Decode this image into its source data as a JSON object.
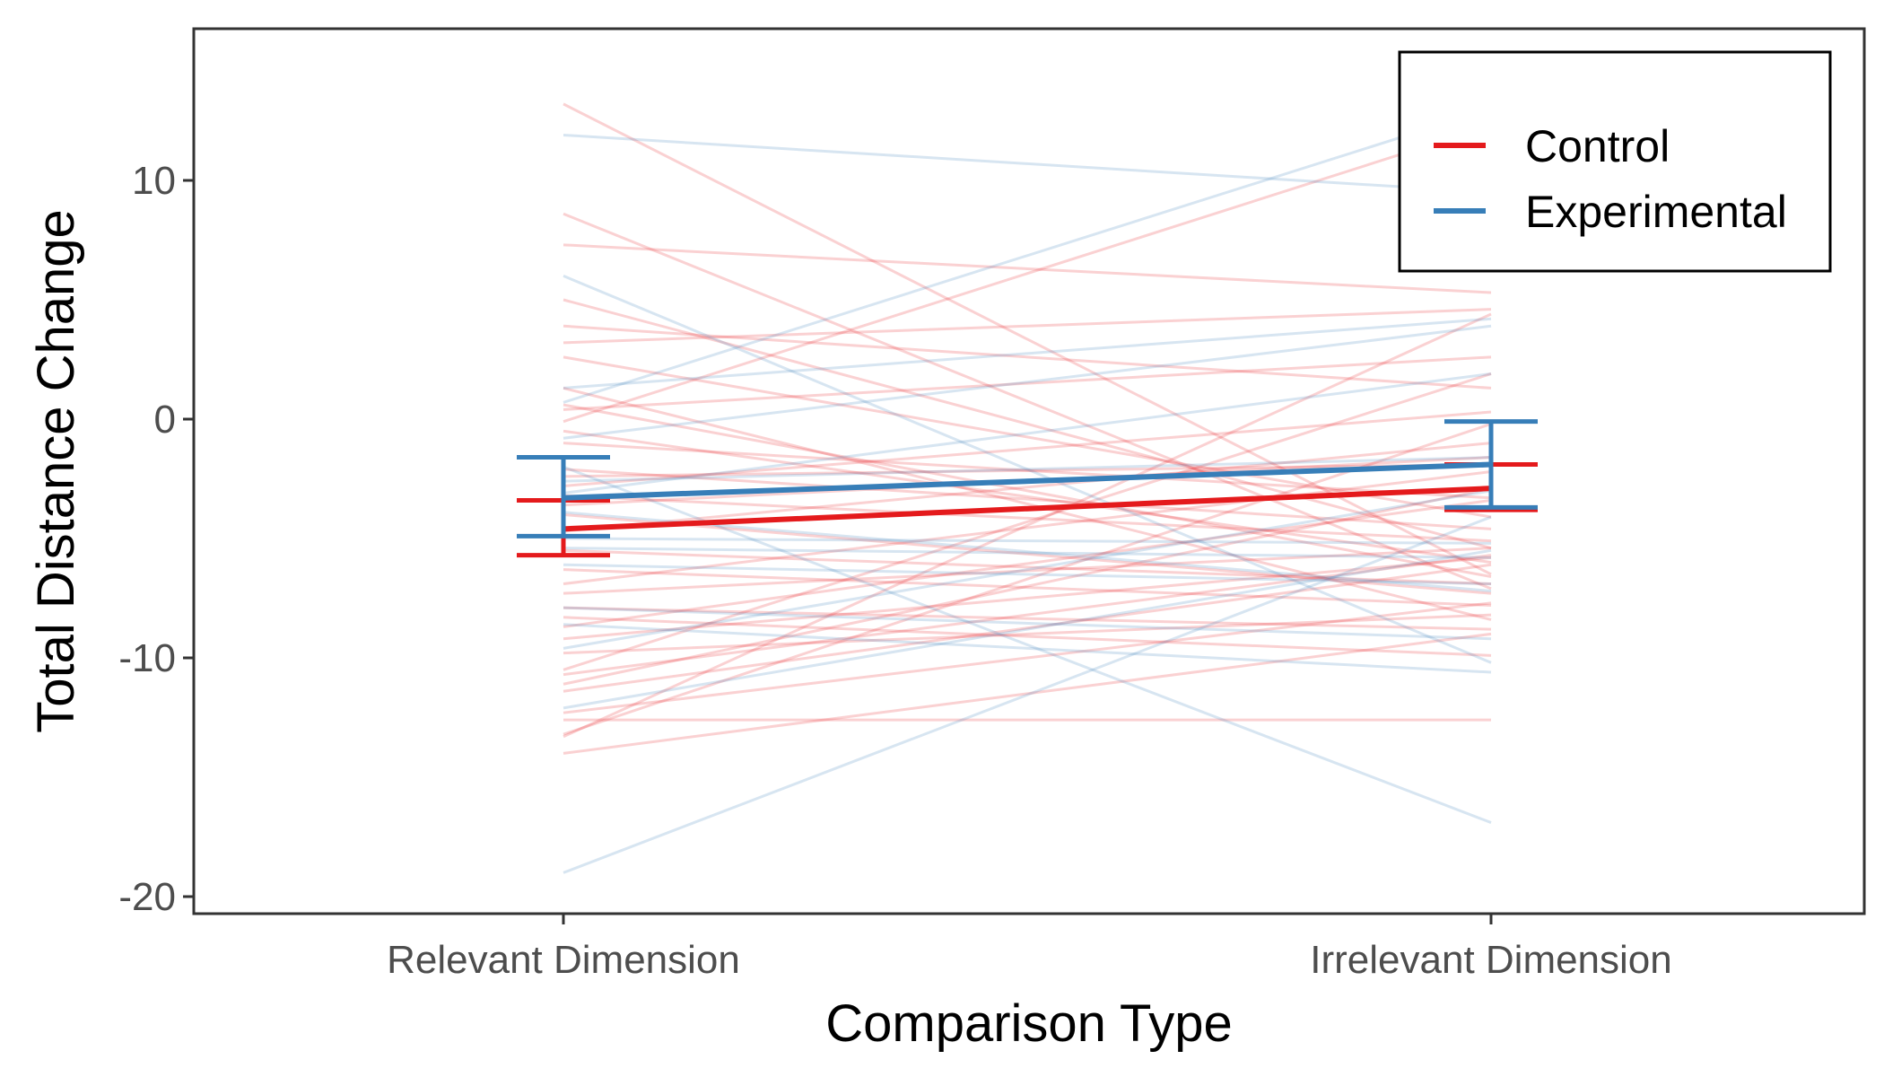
{
  "chart_data": {
    "type": "line",
    "xlabel": "Comparison Type",
    "ylabel": "Total Distance Change",
    "categories": [
      "Relevant Dimension",
      "Irrelevant Dimension"
    ],
    "ylim": [
      -20.5,
      16.5
    ],
    "yticks": [
      10,
      0,
      -10,
      -20
    ],
    "grid": false,
    "legend": {
      "position": "top-right",
      "entries": [
        {
          "name": "Control",
          "color": "#e41a1c"
        },
        {
          "name": "Experimental",
          "color": "#377eb8"
        }
      ]
    },
    "series": [
      {
        "name": "Control",
        "color": "#e41a1c",
        "means": [
          -4.6,
          -2.9
        ],
        "error_bars": [
          [
            -5.7,
            -3.4
          ],
          [
            -3.8,
            -1.9
          ]
        ]
      },
      {
        "name": "Experimental",
        "color": "#377eb8",
        "means": [
          -3.3,
          -1.9
        ],
        "error_bars": [
          [
            -4.9,
            -1.6
          ],
          [
            -3.7,
            -0.1
          ]
        ]
      }
    ],
    "individual_lines": {
      "Control": [
        [
          13.2,
          -6.5
        ],
        [
          8.6,
          -7.1
        ],
        [
          7.3,
          5.3
        ],
        [
          3.9,
          1.3
        ],
        [
          3.2,
          4.6
        ],
        [
          2.6,
          -4.1
        ],
        [
          1.3,
          -8.4
        ],
        [
          0.6,
          -6.6
        ],
        [
          0.4,
          2.6
        ],
        [
          -0.1,
          12.3
        ],
        [
          -1.0,
          -3.3
        ],
        [
          -2.1,
          -4.6
        ],
        [
          -2.8,
          0.3
        ],
        [
          -3.2,
          -5.1
        ],
        [
          -3.6,
          -1.6
        ],
        [
          -4.0,
          -7.3
        ],
        [
          -4.7,
          -1.0
        ],
        [
          -5.5,
          -6.9
        ],
        [
          -6.3,
          -7.8
        ],
        [
          -6.9,
          -2.2
        ],
        [
          -7.3,
          -5.4
        ],
        [
          -7.9,
          -8.8
        ],
        [
          -8.7,
          -3.4
        ],
        [
          -9.2,
          -5.8
        ],
        [
          -9.8,
          -8.2
        ],
        [
          -10.5,
          1.9
        ],
        [
          -10.7,
          -5.7
        ],
        [
          -11.1,
          -2.9
        ],
        [
          -11.4,
          -6.1
        ],
        [
          -12.6,
          -12.6
        ],
        [
          -13.2,
          -0.2
        ],
        [
          -13.3,
          4.4
        ],
        [
          -14.0,
          -9.0
        ],
        [
          -12.3,
          -7.7
        ],
        [
          -8.3,
          -9.9
        ],
        [
          -0.5,
          -6.0
        ],
        [
          5.0,
          -5.4
        ],
        [
          -2.4,
          -1.9
        ]
      ],
      "Experimental": [
        [
          11.9,
          9.5
        ],
        [
          6.0,
          -10.2
        ],
        [
          1.3,
          4.2
        ],
        [
          0.7,
          13.0
        ],
        [
          -0.8,
          3.9
        ],
        [
          -2.6,
          -1.6
        ],
        [
          -3.9,
          -7.2
        ],
        [
          -5.4,
          -5.8
        ],
        [
          -6.1,
          -6.9
        ],
        [
          -7.9,
          -9.2
        ],
        [
          -8.6,
          -10.6
        ],
        [
          -9.6,
          -3.0
        ],
        [
          -12.1,
          -5.5
        ],
        [
          -19.0,
          -4.1
        ],
        [
          -2.0,
          -16.9
        ],
        [
          -5.0,
          -5.2
        ],
        [
          -3.1,
          1.9
        ]
      ]
    }
  }
}
